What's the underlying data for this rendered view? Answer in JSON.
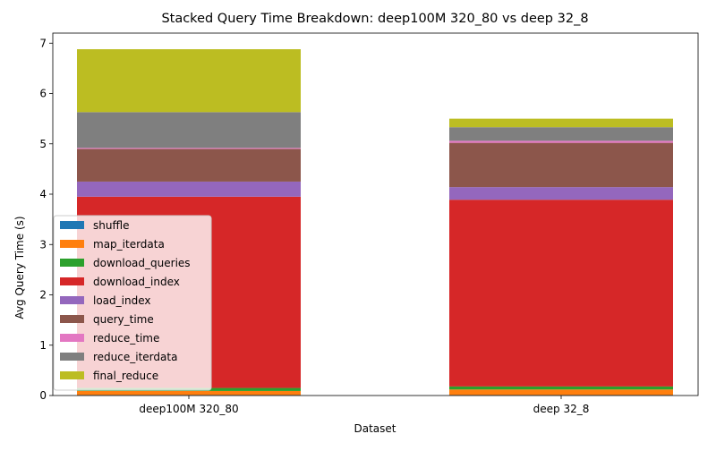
{
  "chart_data": {
    "type": "bar",
    "stacked": true,
    "title": "Stacked Query Time Breakdown: deep100M 320_80 vs deep 32_8",
    "xlabel": "Dataset",
    "ylabel": "Avg Query Time (s)",
    "ylim": [
      0,
      7.2
    ],
    "yticks": [
      0,
      1,
      2,
      3,
      4,
      5,
      6,
      7
    ],
    "categories": [
      "deep100M 320_80",
      "deep 32_8"
    ],
    "legend_position": "lower-left",
    "grid": false,
    "series": [
      {
        "name": "shuffle",
        "color": "#1f77b4",
        "values": [
          0.01,
          0.01
        ]
      },
      {
        "name": "map_iterdata",
        "color": "#ff7f0e",
        "values": [
          0.08,
          0.11
        ]
      },
      {
        "name": "download_queries",
        "color": "#2ca02c",
        "values": [
          0.06,
          0.06
        ]
      },
      {
        "name": "download_index",
        "color": "#d62728",
        "values": [
          3.8,
          3.71
        ]
      },
      {
        "name": "load_index",
        "color": "#9467bd",
        "values": [
          0.3,
          0.25
        ]
      },
      {
        "name": "query_time",
        "color": "#8c564b",
        "values": [
          0.65,
          0.88
        ]
      },
      {
        "name": "reduce_time",
        "color": "#e377c2",
        "values": [
          0.02,
          0.04
        ]
      },
      {
        "name": "reduce_iterdata",
        "color": "#7f7f7f",
        "values": [
          0.71,
          0.27
        ]
      },
      {
        "name": "final_reduce",
        "color": "#bcbd22",
        "values": [
          1.25,
          0.17
        ]
      }
    ]
  }
}
